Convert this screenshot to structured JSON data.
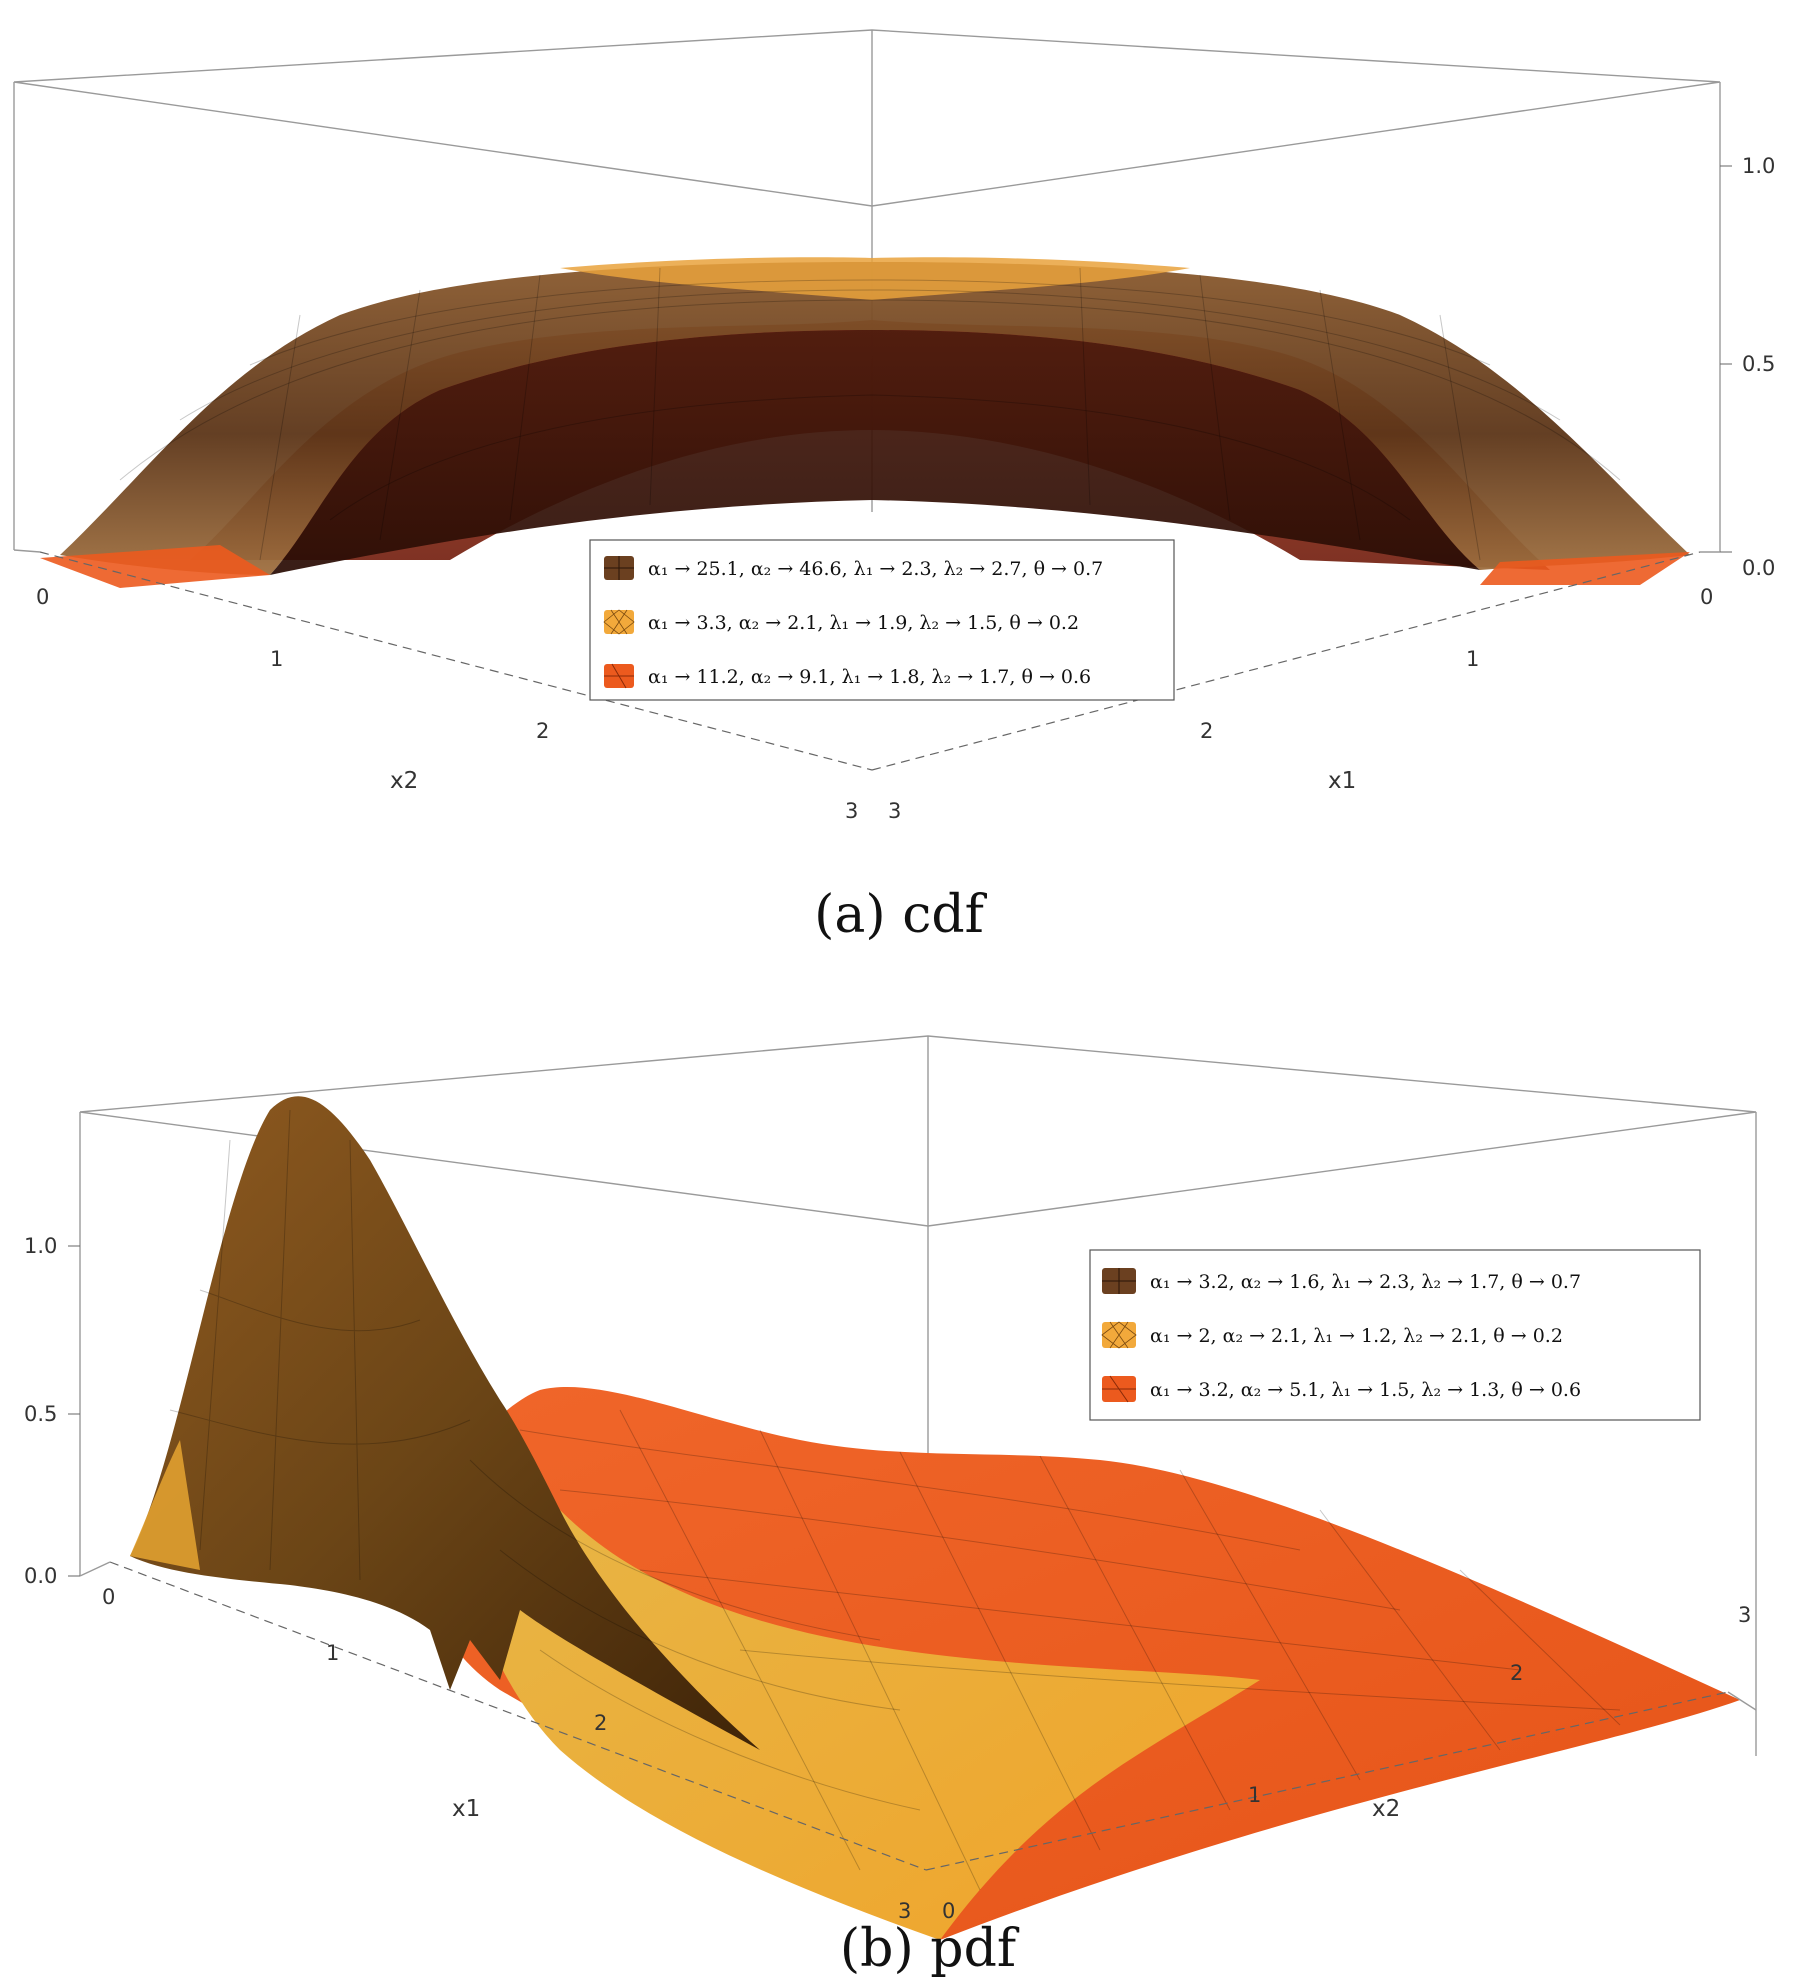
{
  "colors": {
    "surface_1": "#6b4020",
    "surface_2": "#f2a93b",
    "surface_3": "#ec5a1e",
    "box": "#9a9a9a"
  },
  "chart_data": [
    {
      "type": "surface3d",
      "caption": "(a) cdf",
      "xlabel": "x1",
      "ylabel": "x2",
      "zlabel": "",
      "x_ticks": [
        "0",
        "1",
        "2",
        "3"
      ],
      "y_ticks": [
        "0",
        "1",
        "2",
        "3"
      ],
      "z_ticks": [
        "0.0",
        "0.5",
        "1.0"
      ],
      "xlim": [
        0,
        3
      ],
      "ylim": [
        0,
        3
      ],
      "zlim": [
        0,
        1.2
      ],
      "grid": true,
      "legend_position": "bottom-center",
      "series": [
        {
          "name": "α₁ → 25.1, α₂ → 46.6, λ₁ → 2.3, λ₂ → 2.7, θ → 0.7",
          "color": "#6b4020",
          "pattern": "grid-brown"
        },
        {
          "name": "α₁ → 3.3, α₂ → 2.1, λ₁ → 1.9, λ₂ → 1.5, θ → 0.2",
          "color": "#f2a93b",
          "pattern": "crosshatch-yellow"
        },
        {
          "name": "α₁ → 11.2, α₂ → 9.1, λ₁ → 1.8, λ₂ → 1.7, θ → 0.6",
          "color": "#ec5a1e",
          "pattern": "grid-orange"
        }
      ]
    },
    {
      "type": "surface3d",
      "caption": "(b) pdf",
      "xlabel": "x1",
      "ylabel": "x2",
      "zlabel": "",
      "x_ticks": [
        "0",
        "1",
        "2",
        "3"
      ],
      "y_ticks": [
        "0",
        "1",
        "2",
        "3"
      ],
      "z_ticks": [
        "0.0",
        "0.5",
        "1.0"
      ],
      "xlim": [
        0,
        3
      ],
      "ylim": [
        0,
        3
      ],
      "zlim": [
        0,
        1.4
      ],
      "peak_value": 1.35,
      "grid": true,
      "legend_position": "top-right",
      "series": [
        {
          "name": "α₁ → 3.2, α₂ → 1.6, λ₁ → 2.3, λ₂ → 1.7, θ → 0.7",
          "color": "#6b4020",
          "pattern": "grid-brown"
        },
        {
          "name": "α₁ → 2, α₂ → 2.1, λ₁ → 1.2, λ₂ → 2.1, θ → 0.2",
          "color": "#f2a93b",
          "pattern": "crosshatch-yellow"
        },
        {
          "name": "α₁ → 3.2, α₂ → 5.1, λ₁ → 1.5, λ₂ → 1.3, θ → 0.6",
          "color": "#ec5a1e",
          "pattern": "grid-orange"
        }
      ]
    }
  ]
}
